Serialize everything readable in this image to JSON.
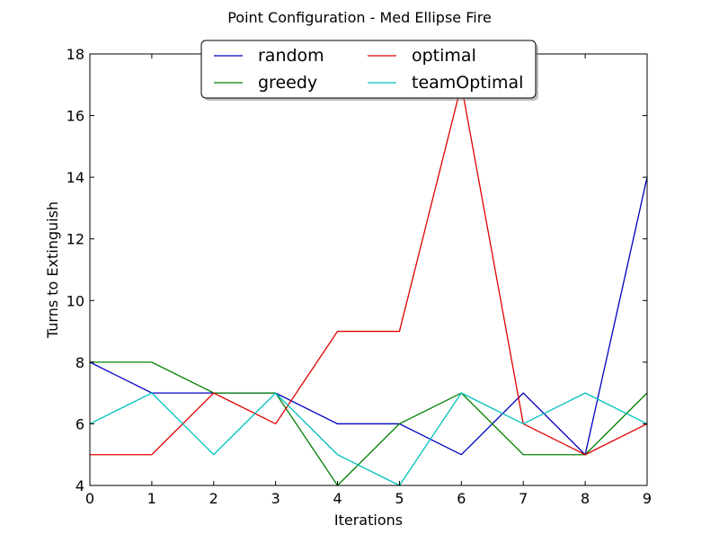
{
  "chart_data": {
    "type": "line",
    "title": "Point Configuration - Med Ellipse Fire",
    "xlabel": "Iterations",
    "ylabel": "Turns to Extinguish",
    "xlim": [
      0,
      9
    ],
    "ylim": [
      4,
      18
    ],
    "xticks": [
      0,
      1,
      2,
      3,
      4,
      5,
      6,
      7,
      8,
      9
    ],
    "yticks": [
      4,
      6,
      8,
      10,
      12,
      14,
      16,
      18
    ],
    "x": [
      0,
      1,
      2,
      3,
      4,
      5,
      6,
      7,
      8,
      9
    ],
    "grid": false,
    "legend_position": "top-center",
    "legend_columns": 2,
    "series": [
      {
        "name": "random",
        "color": "#0000bf",
        "values": [
          8,
          7,
          7,
          7,
          6,
          6,
          5,
          7,
          5,
          14
        ]
      },
      {
        "name": "greedy",
        "color": "#008000",
        "values": [
          8,
          8,
          7,
          7,
          4,
          6,
          7,
          5,
          5,
          7
        ]
      },
      {
        "name": "optimal",
        "color": "#e00000",
        "values": [
          5,
          5,
          7,
          6,
          9,
          9,
          17,
          6,
          5,
          6
        ]
      },
      {
        "name": "teamOptimal",
        "color": "#00bfbf",
        "values": [
          6,
          7,
          5,
          7,
          5,
          4,
          7,
          6,
          7,
          6
        ]
      }
    ]
  }
}
